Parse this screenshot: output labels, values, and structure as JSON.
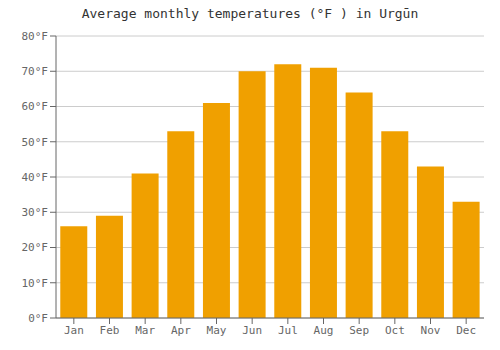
{
  "chart_data": {
    "type": "bar",
    "title": "Average monthly temperatures (°F ) in Urgūn",
    "categories": [
      "Jan",
      "Feb",
      "Mar",
      "Apr",
      "May",
      "Jun",
      "Jul",
      "Aug",
      "Sep",
      "Oct",
      "Nov",
      "Dec"
    ],
    "values": [
      26,
      29,
      41,
      53,
      61,
      70,
      72,
      71,
      64,
      53,
      43,
      33
    ],
    "color": "#F0A000",
    "ylim": [
      0,
      80
    ],
    "yticks": [
      {
        "value": 0,
        "label": "0°F"
      },
      {
        "value": 10,
        "label": "10°F"
      },
      {
        "value": 20,
        "label": "20°F"
      },
      {
        "value": 30,
        "label": "30°F"
      },
      {
        "value": 40,
        "label": "40°F"
      },
      {
        "value": 50,
        "label": "50°F"
      },
      {
        "value": 60,
        "label": "60°F"
      },
      {
        "value": 70,
        "label": "70°F"
      },
      {
        "value": 80,
        "label": "80°F"
      }
    ],
    "grid": true
  }
}
